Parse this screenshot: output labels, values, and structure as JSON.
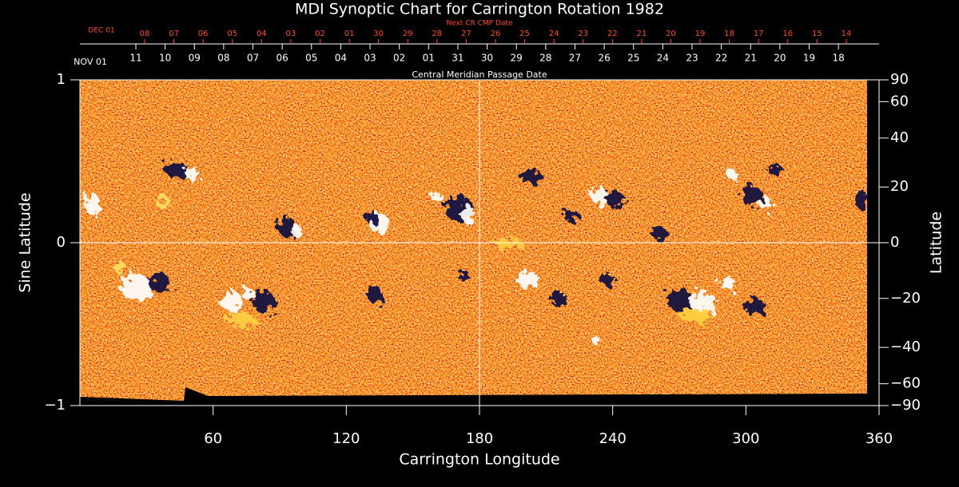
{
  "chart_data": {
    "type": "synoptic-map",
    "title": "MDI Synoptic Chart for Carrington Rotation 1982",
    "x_label": "Carrington Longitude",
    "y_label": "Sine Latitude",
    "y2_label": "Latitude",
    "xlim": [
      0,
      360
    ],
    "xticks": [
      60,
      120,
      180,
      240,
      300,
      360
    ],
    "ylim": [
      -1,
      1
    ],
    "yticks": [
      {
        "value": -1,
        "label": "−1"
      },
      0,
      1
    ],
    "y2lim": [
      -90,
      90
    ],
    "y2scale": "sine",
    "y2ticks": [
      {
        "value": -90,
        "label": "−90"
      },
      {
        "value": -60,
        "label": "−60"
      },
      {
        "value": -40,
        "label": "−40"
      },
      {
        "value": -20,
        "label": "−20"
      },
      0,
      20,
      40,
      60,
      90
    ],
    "crosshair": [
      180,
      0
    ],
    "top_axes": [
      {
        "title": "Next CR CMP Date",
        "start": "DEC 01",
        "color": "#ff4a26",
        "labels": [
          "08",
          "07",
          "06",
          "05",
          "04",
          "03",
          "02",
          "01",
          "30",
          "29",
          "28",
          "27",
          "26",
          "25",
          "24",
          "23",
          "22",
          "21",
          "20",
          "19",
          "18",
          "17",
          "16",
          "15",
          "14"
        ]
      },
      {
        "title": "Central Meridian Passage Date",
        "start": "NOV 01",
        "color": "#ffffff",
        "labels": [
          "11",
          "10",
          "09",
          "08",
          "07",
          "06",
          "05",
          "04",
          "03",
          "02",
          "01",
          "31",
          "30",
          "29",
          "28",
          "27",
          "26",
          "25",
          "24",
          "23",
          "22",
          "21",
          "20",
          "19",
          "18"
        ]
      }
    ]
  }
}
